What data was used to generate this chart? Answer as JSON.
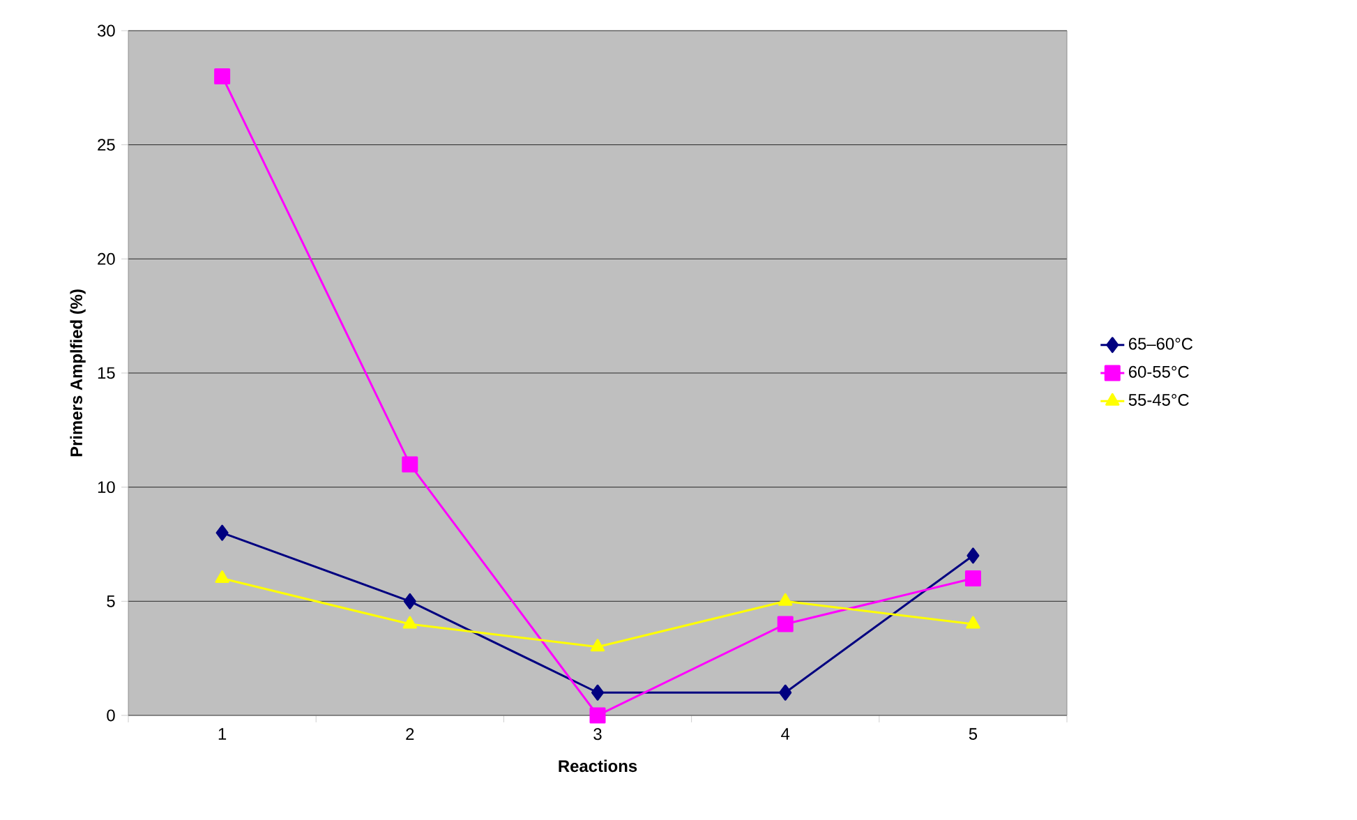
{
  "chart_data": {
    "type": "line",
    "xlabel": "Reactions",
    "ylabel": "Primers Amplfied (%)",
    "categories": [
      "1",
      "2",
      "3",
      "4",
      "5"
    ],
    "series": [
      {
        "name": "65–60°C",
        "color": "#000080",
        "marker": "diamond",
        "values": [
          8,
          5,
          1,
          1,
          7
        ]
      },
      {
        "name": "60-55°C",
        "color": "#ff00ff",
        "marker": "square",
        "values": [
          28,
          11,
          0,
          4,
          6
        ]
      },
      {
        "name": "55-45°C",
        "color": "#ffff00",
        "marker": "triangle",
        "values": [
          6,
          4,
          3,
          5,
          4
        ]
      }
    ],
    "ylim": [
      0,
      30
    ],
    "yticks": [
      0,
      5,
      10,
      15,
      20,
      25,
      30
    ],
    "grid": "y",
    "legend": "right"
  }
}
